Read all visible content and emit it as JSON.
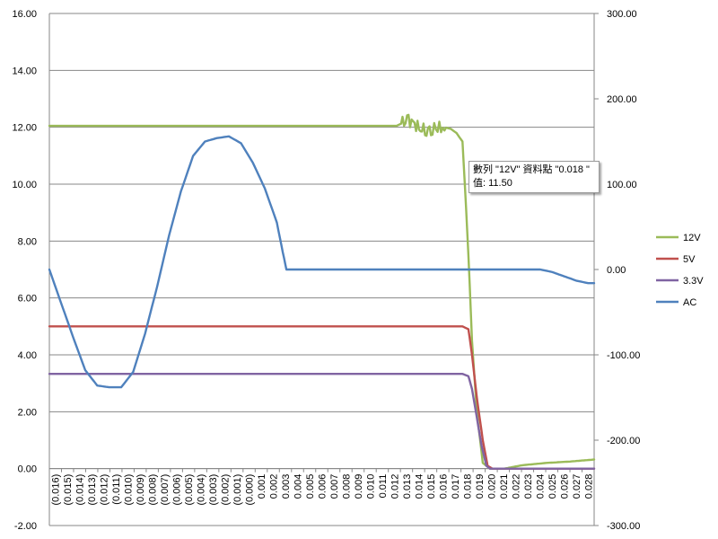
{
  "chart_data": {
    "type": "line",
    "x_categories": [
      "(0.016)",
      "(0.015)",
      "(0.014)",
      "(0.013)",
      "(0.012)",
      "(0.011)",
      "(0.010)",
      "(0.009)",
      "(0.008)",
      "(0.007)",
      "(0.006)",
      "(0.005)",
      "(0.004)",
      "(0.003)",
      "(0.002)",
      "(0.001)",
      "(0.000)",
      "0.001",
      "0.002",
      "0.003",
      "0.004",
      "0.005",
      "0.006",
      "0.007",
      "0.008",
      "0.009",
      "0.010",
      "0.011",
      "0.012",
      "0.013",
      "0.014",
      "0.015",
      "0.016",
      "0.017",
      "0.018",
      "0.019",
      "0.020",
      "0.021",
      "0.022",
      "0.023",
      "0.024",
      "0.025",
      "0.026",
      "0.027",
      "0.028"
    ],
    "x_range": [
      -0.0165,
      0.029
    ],
    "primary_axis": {
      "ylim": [
        -2,
        16
      ],
      "ticks": [
        "-2.00",
        "0.00",
        "2.00",
        "4.00",
        "6.00",
        "8.00",
        "10.00",
        "12.00",
        "14.00",
        "16.00"
      ],
      "tick_values": [
        -2,
        0,
        2,
        4,
        6,
        8,
        10,
        12,
        14,
        16
      ]
    },
    "secondary_axis": {
      "ylim": [
        -300,
        300
      ],
      "ticks": [
        "-300.00",
        "-200.00",
        "-100.00",
        "0.00",
        "100.00",
        "200.00",
        "300.00"
      ],
      "tick_values": [
        -300,
        -200,
        -100,
        0,
        100,
        200,
        300
      ]
    },
    "gridlines": "horizontal",
    "legend_position": "right",
    "series": [
      {
        "name": "12V",
        "axis": "primary",
        "color": "#9BBB59",
        "points": [
          [
            -0.0165,
            12.05
          ],
          [
            0.0125,
            12.05
          ],
          [
            0.013,
            12.15
          ],
          [
            0.0135,
            12.25
          ],
          [
            0.014,
            12.1
          ],
          [
            0.0145,
            11.95
          ],
          [
            0.015,
            11.9
          ],
          [
            0.0155,
            11.95
          ],
          [
            0.0165,
            12.0
          ],
          [
            0.017,
            11.95
          ],
          [
            0.0175,
            11.8
          ],
          [
            0.018,
            11.5
          ],
          [
            0.0182,
            10.0
          ],
          [
            0.0185,
            7.5
          ],
          [
            0.0188,
            4.5
          ],
          [
            0.0192,
            2.0
          ],
          [
            0.0197,
            0.2
          ],
          [
            0.0203,
            0.0
          ],
          [
            0.0215,
            0.0
          ],
          [
            0.023,
            0.12
          ],
          [
            0.025,
            0.2
          ],
          [
            0.027,
            0.25
          ],
          [
            0.029,
            0.32
          ]
        ],
        "noise_region": [
          0.013,
          0.0165
        ]
      },
      {
        "name": "5V",
        "axis": "primary",
        "color": "#C0504D",
        "points": [
          [
            -0.0165,
            5.0
          ],
          [
            0.018,
            5.0
          ],
          [
            0.0185,
            4.9
          ],
          [
            0.0188,
            4.0
          ],
          [
            0.0192,
            2.5
          ],
          [
            0.0197,
            1.0
          ],
          [
            0.0201,
            0.1
          ],
          [
            0.0205,
            0.0
          ],
          [
            0.029,
            0.0
          ]
        ]
      },
      {
        "name": "3.3V",
        "axis": "primary",
        "color": "#8064A2",
        "points": [
          [
            -0.0165,
            3.33
          ],
          [
            0.018,
            3.33
          ],
          [
            0.0185,
            3.25
          ],
          [
            0.0188,
            2.8
          ],
          [
            0.0192,
            1.8
          ],
          [
            0.0196,
            0.8
          ],
          [
            0.02,
            0.1
          ],
          [
            0.0203,
            0.0
          ],
          [
            0.029,
            0.0
          ]
        ]
      },
      {
        "name": "AC",
        "axis": "secondary",
        "color": "#4F81BD",
        "points": [
          [
            -0.0165,
            0
          ],
          [
            -0.0155,
            -40
          ],
          [
            -0.0145,
            -80
          ],
          [
            -0.0135,
            -118
          ],
          [
            -0.0125,
            -136
          ],
          [
            -0.0115,
            -138
          ],
          [
            -0.0105,
            -138
          ],
          [
            -0.0095,
            -120
          ],
          [
            -0.0085,
            -75
          ],
          [
            -0.0075,
            -20
          ],
          [
            -0.0065,
            40
          ],
          [
            -0.0055,
            92
          ],
          [
            -0.0045,
            133
          ],
          [
            -0.0035,
            150
          ],
          [
            -0.0025,
            154
          ],
          [
            -0.0015,
            156
          ],
          [
            -0.0005,
            148
          ],
          [
            0.0005,
            125
          ],
          [
            0.0015,
            95
          ],
          [
            0.0025,
            55
          ],
          [
            0.003,
            20
          ],
          [
            0.0033,
            0
          ],
          [
            0.0245,
            0
          ],
          [
            0.0255,
            -3
          ],
          [
            0.0265,
            -8
          ],
          [
            0.0275,
            -13
          ],
          [
            0.0285,
            -16
          ],
          [
            0.029,
            -16
          ]
        ]
      }
    ]
  },
  "tooltip": {
    "line1": "數列 \"12V\" 資料點 \"0.018 \"",
    "line2": "值: 11.50"
  }
}
